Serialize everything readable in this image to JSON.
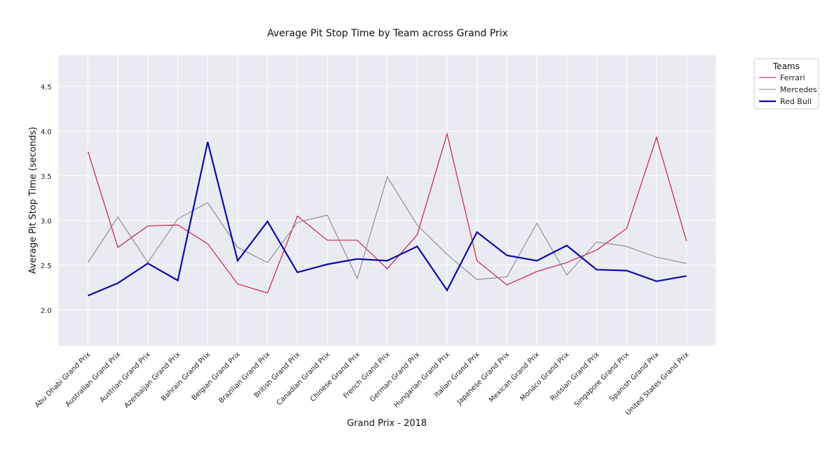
{
  "chart_data": {
    "type": "line",
    "title": "Average Pit Stop Time by Team across Grand Prix",
    "xlabel": "Grand Prix - 2018",
    "ylabel": "Average Pit Stop Time (seconds)",
    "ylim": [
      1.6,
      4.85
    ],
    "yticks": [
      "2.0",
      "2.5",
      "3.0",
      "3.5",
      "4.0",
      "4.5"
    ],
    "grid": true,
    "legend_title": "Teams",
    "legend_position": "outside-top-right",
    "categories": [
      "Abu Dhabi Grand Prix",
      "Australian Grand Prix",
      "Austrian Grand Prix",
      "Azerbaijan Grand Prix",
      "Bahrain Grand Prix",
      "Belgian Grand Prix",
      "Brazilian Grand Prix",
      "British Grand Prix",
      "Canadian Grand Prix",
      "Chinese Grand Prix",
      "French Grand Prix",
      "German Grand Prix",
      "Hungarian Grand Prix",
      "Italian Grand Prix",
      "Japanese Grand Prix",
      "Mexican Grand Prix",
      "Monaco Grand Prix",
      "Russian Grand Prix",
      "Singapore Grand Prix",
      "Spanish Grand Prix",
      "United States Grand Prix"
    ],
    "series": [
      {
        "name": "Ferrari",
        "color": "#c8102e",
        "values": [
          3.77,
          2.7,
          2.94,
          2.95,
          2.74,
          2.29,
          2.19,
          3.05,
          2.78,
          2.78,
          2.46,
          2.84,
          3.97,
          2.55,
          2.28,
          2.43,
          2.53,
          2.67,
          2.91,
          3.93,
          2.77
        ]
      },
      {
        "name": "Mercedes",
        "color": "#808080",
        "values": [
          2.53,
          3.04,
          2.53,
          3.02,
          3.2,
          2.7,
          2.53,
          2.98,
          3.06,
          2.35,
          3.49,
          2.95,
          2.62,
          2.34,
          2.37,
          2.97,
          2.39,
          2.76,
          2.71,
          2.59,
          2.52
        ]
      },
      {
        "name": "Red Bull",
        "color": "#0a0aa8",
        "values": [
          2.16,
          2.3,
          2.52,
          2.33,
          3.88,
          2.55,
          2.99,
          2.42,
          2.51,
          2.57,
          2.55,
          2.71,
          2.22,
          2.87,
          2.61,
          2.55,
          2.72,
          2.45,
          2.44,
          2.32,
          2.38
        ]
      }
    ]
  }
}
